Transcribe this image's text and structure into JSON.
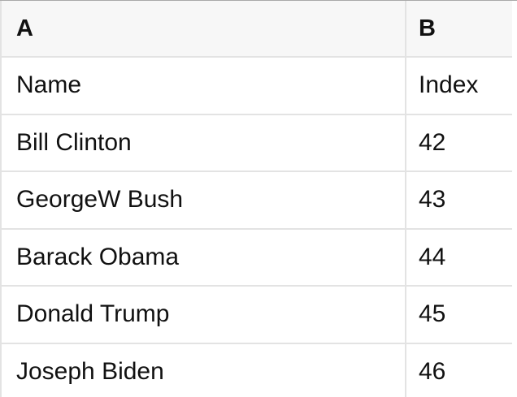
{
  "spreadsheet": {
    "column_headers": [
      "A",
      "B"
    ],
    "rows": [
      [
        "Name",
        "Index"
      ],
      [
        "Bill Clinton",
        "42"
      ],
      [
        "GeorgeW Bush",
        "43"
      ],
      [
        "Barack Obama",
        "44"
      ],
      [
        "Donald Trump",
        "45"
      ],
      [
        "Joseph Biden",
        "46"
      ]
    ],
    "colors": {
      "background": "#ffffff",
      "header_background": "#f7f7f7",
      "grid_border": "#e3e3e3",
      "top_border": "#a9a9a9",
      "text": "#111111"
    }
  }
}
